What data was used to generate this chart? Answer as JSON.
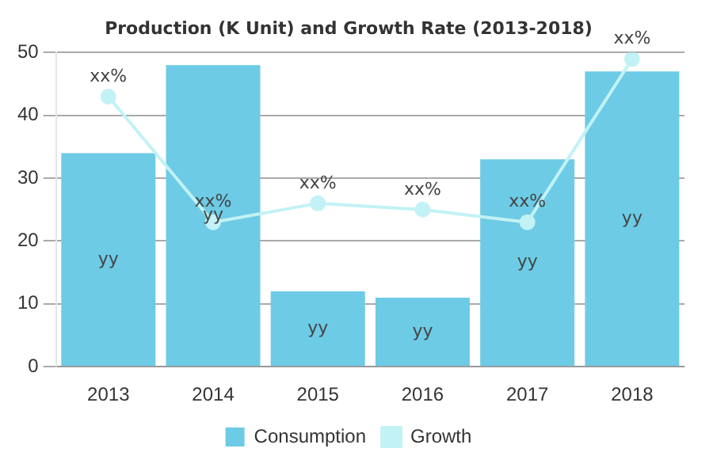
{
  "chart_data": {
    "type": "bar",
    "title": "Production (K Unit) and Growth Rate (2013-2018)",
    "categories": [
      "2013",
      "2014",
      "2015",
      "2016",
      "2017",
      "2018"
    ],
    "series": [
      {
        "name": "Consumption",
        "color": "#6dcbe6",
        "values": [
          34,
          48,
          12,
          11,
          33,
          47
        ],
        "value_labels": [
          "yy",
          "yy",
          "yy",
          "yy",
          "yy",
          "yy"
        ]
      },
      {
        "name": "Growth",
        "type": "line",
        "color": "#c2f2f5",
        "values": [
          43,
          23,
          26,
          25,
          23,
          49
        ],
        "value_labels": [
          "xx%",
          "xx%",
          "xx%",
          "xx%",
          "xx%",
          "xx%"
        ]
      }
    ],
    "ylim": [
      0,
      50
    ],
    "yticks": [
      0,
      10,
      20,
      30,
      40,
      50
    ],
    "grid": "y",
    "legend": "bottom",
    "marker": "circle"
  }
}
